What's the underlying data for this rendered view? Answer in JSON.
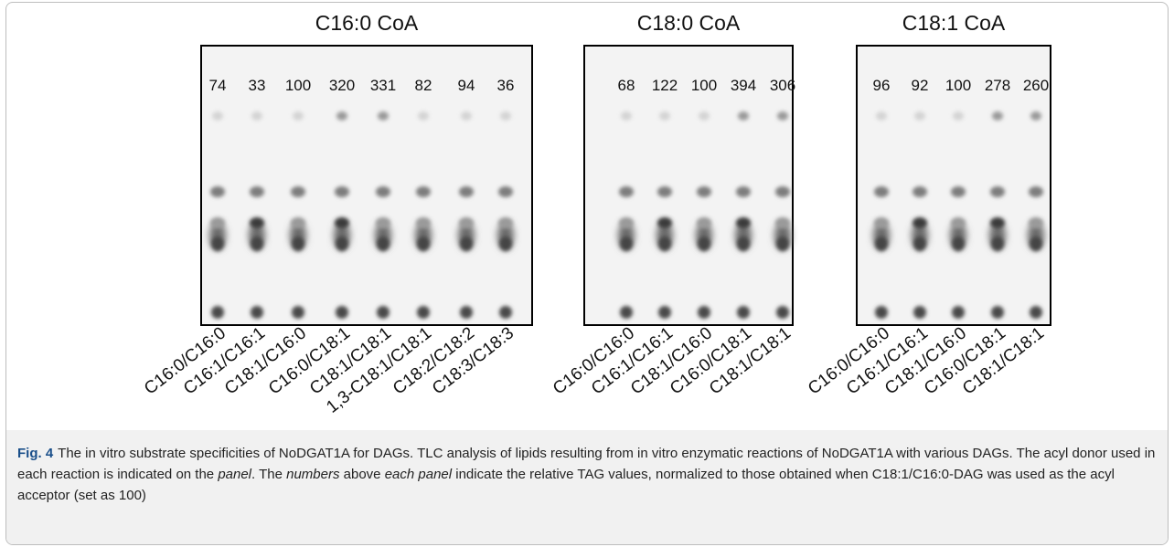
{
  "panels": [
    {
      "title": "C16:0 CoA",
      "values": [
        74,
        33,
        100,
        320,
        331,
        82,
        94,
        36
      ],
      "lanes": [
        "C16:0/C16:0",
        "C16:1/C16:1",
        "C18:1/C16:0",
        "C16:0/C18:1",
        "C18:1/C18:1",
        "1,3-C18:1/C18:1",
        "C18:2/C18:2",
        "C18:3/C18:3"
      ]
    },
    {
      "title": "C18:0 CoA",
      "values": [
        68,
        122,
        100,
        394,
        306
      ],
      "lanes": [
        "C16:0/C16:0",
        "C16:1/C16:1",
        "C18:1/C16:0",
        "C16:0/C18:1",
        "C18:1/C18:1"
      ]
    },
    {
      "title": "C18:1 CoA",
      "values": [
        96,
        92,
        100,
        278,
        260
      ],
      "lanes": [
        "C16:0/C16:0",
        "C16:1/C16:1",
        "C18:1/C16:0",
        "C16:0/C18:1",
        "C18:1/C18:1"
      ]
    }
  ],
  "caption": {
    "label": "Fig. 4",
    "parts": [
      {
        "text": "The in vitro substrate specificities of NoDGAT1A for DAGs. TLC analysis of lipids resulting from in vitro enzymatic reactions of NoDGAT1A with various DAGs. The acyl donor used in each reaction is indicated on the ",
        "italic": false
      },
      {
        "text": "panel",
        "italic": true
      },
      {
        "text": ". The ",
        "italic": false
      },
      {
        "text": "numbers",
        "italic": true
      },
      {
        "text": " above ",
        "italic": false
      },
      {
        "text": "each panel",
        "italic": true
      },
      {
        "text": " indicate the relative TAG values, normalized to those obtained when C18:1/C16:0-DAG was used as the acyl acceptor (set as 100)",
        "italic": false
      }
    ]
  }
}
